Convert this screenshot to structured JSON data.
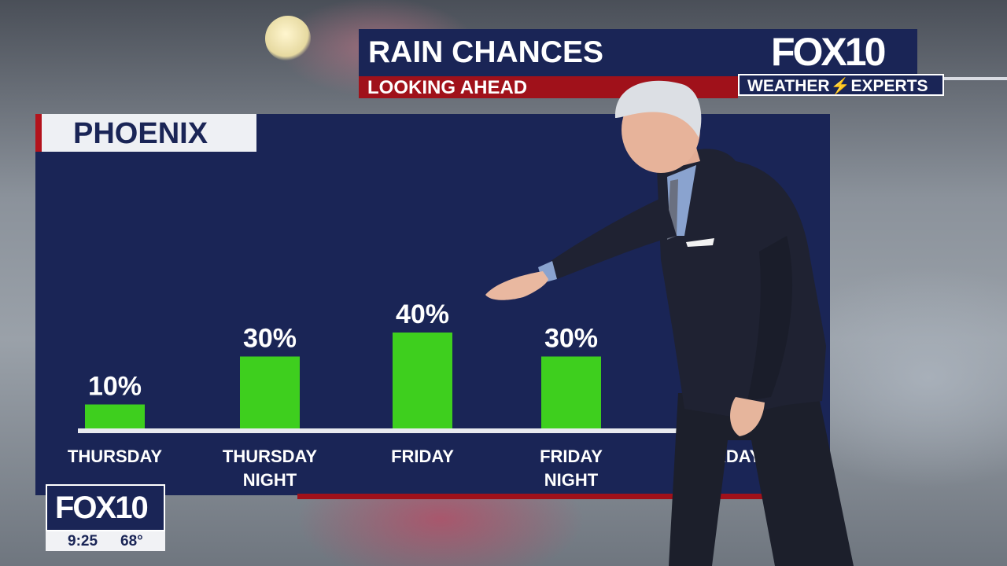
{
  "header": {
    "title": "RAIN CHANCES",
    "subtitle": "LOOKING AHEAD"
  },
  "branding": {
    "logo_top": "FOX10",
    "badge_left": "WEATHER",
    "badge_right": "EXPERTS",
    "bug_logo": "FOX10"
  },
  "bug": {
    "time": "9:25",
    "temperature": "68°"
  },
  "colors": {
    "navy": "#1a2556",
    "red": "#a0111a",
    "bar_green": "#3ecf1e",
    "baseline": "#e8eaef"
  },
  "chart_data": {
    "type": "bar",
    "title": "PHOENIX",
    "categories": [
      "THURSDAY",
      "THURSDAY NIGHT",
      "FRIDAY",
      "FRIDAY NIGHT",
      "...URDAY"
    ],
    "values": [
      10,
      30,
      40,
      30,
      null
    ],
    "value_labels": [
      "10%",
      "30%",
      "40%",
      "30%",
      ""
    ],
    "ylim": [
      0,
      100
    ],
    "grid": false,
    "unit": "%"
  }
}
